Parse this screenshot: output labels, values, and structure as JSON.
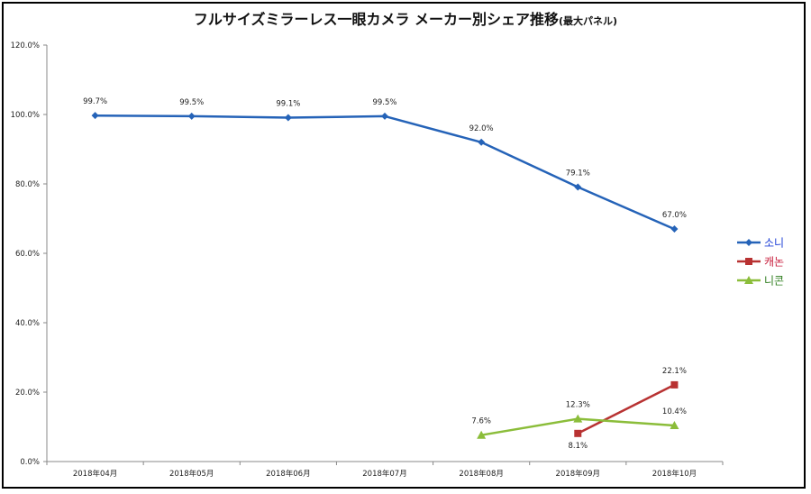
{
  "chart_data": {
    "type": "line",
    "title": "フルサイズミラーレス一眼カメラ メーカー別シェア推移",
    "subtitle": "(最大パネル)",
    "categories": [
      "2018年04月",
      "2018年05月",
      "2018年06月",
      "2018年07月",
      "2018年08月",
      "2018年09月",
      "2018年10月"
    ],
    "y_tick_labels": [
      "0.0%",
      "20.0%",
      "40.0%",
      "60.0%",
      "80.0%",
      "100.0%",
      "120.0%"
    ],
    "ylim": [
      0,
      120
    ],
    "grid": false,
    "legend_position": "right",
    "series": [
      {
        "name": "소니",
        "color": "#2563b8",
        "legend_text_color": "#1d3fd6",
        "marker": "diamond",
        "values": [
          99.7,
          99.5,
          99.1,
          99.5,
          92.0,
          79.1,
          67.0
        ],
        "labels": [
          "99.7%",
          "99.5%",
          "99.1%",
          "99.5%",
          "92.0%",
          "79.1%",
          "67.0%"
        ]
      },
      {
        "name": "캐논",
        "color": "#b83232",
        "legend_text_color": "#c81e3c",
        "marker": "square",
        "values": [
          null,
          null,
          null,
          null,
          null,
          8.1,
          22.1
        ],
        "labels": [
          null,
          null,
          null,
          null,
          null,
          "8.1%",
          "22.1%"
        ]
      },
      {
        "name": "니콘",
        "color": "#8bbd3a",
        "legend_text_color": "#2e7d1e",
        "marker": "triangle",
        "values": [
          null,
          null,
          null,
          null,
          7.6,
          12.3,
          10.4
        ],
        "labels": [
          null,
          null,
          null,
          null,
          "7.6%",
          "12.3%",
          "10.4%"
        ]
      }
    ]
  }
}
